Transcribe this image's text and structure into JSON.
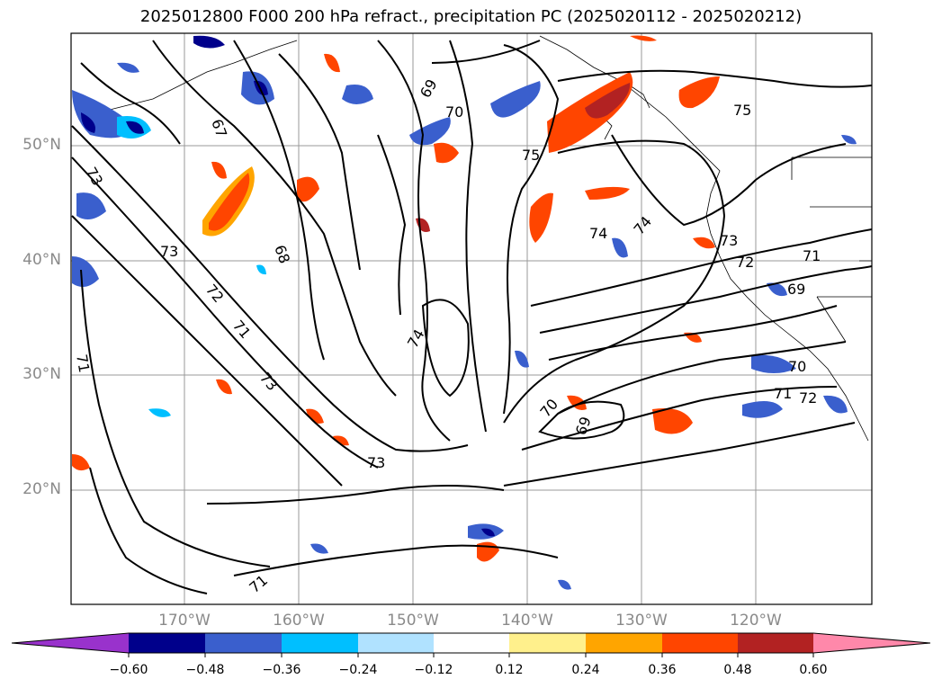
{
  "title": "2025012800 F000 200 hPa refract., precipitation PC (2025020112 - 2025020212)",
  "map": {
    "lat_labels": [
      "50°N",
      "40°N",
      "30°N",
      "20°N"
    ],
    "lon_labels": [
      "170°W",
      "160°W",
      "150°W",
      "140°W",
      "130°W",
      "120°W"
    ],
    "contour_labels": [
      "69",
      "70",
      "75",
      "67",
      "73",
      "68",
      "73",
      "72",
      "71",
      "73",
      "71",
      "74",
      "74",
      "74",
      "73",
      "72",
      "71",
      "69",
      "70",
      "71",
      "72",
      "70",
      "69",
      "73",
      "71",
      "75"
    ]
  },
  "colorbar": {
    "tick_labels": [
      "−0.60",
      "−0.48",
      "−0.36",
      "−0.24",
      "−0.12",
      "0.12",
      "0.24",
      "0.36",
      "0.48",
      "0.60"
    ],
    "colors": [
      "#9932cc",
      "#00008b",
      "#3a5fcd",
      "#00bfff",
      "#b0e2ff",
      "#ffffff",
      "#fff08c",
      "#ffa500",
      "#ff4500",
      "#b22222",
      "#ff88aa"
    ]
  }
}
